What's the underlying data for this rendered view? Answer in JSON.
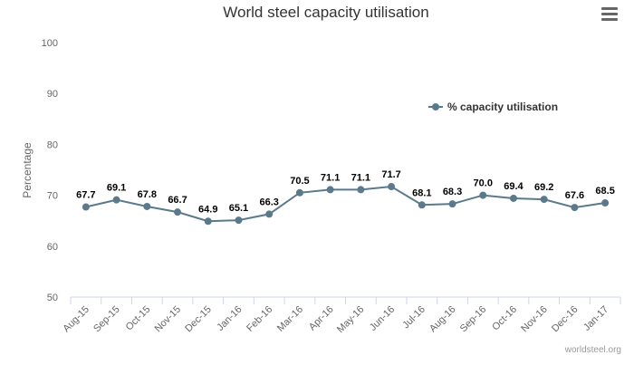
{
  "chart_data": {
    "type": "line",
    "title": "World steel capacity utilisation",
    "ylabel": "Percentage",
    "xlabel": "",
    "ylim": [
      50,
      100
    ],
    "yticks": [
      50,
      60,
      70,
      80,
      90,
      100
    ],
    "grid": false,
    "legend_position": "top-right",
    "categories": [
      "Aug-15",
      "Sep-15",
      "Oct-15",
      "Nov-15",
      "Dec-15",
      "Jan-16",
      "Feb-16",
      "Mar-16",
      "Apr-16",
      "May-16",
      "Jun-16",
      "Jul-16",
      "Aug-16",
      "Sep-16",
      "Oct-16",
      "Nov-16",
      "Dec-16",
      "Jan-17"
    ],
    "series": [
      {
        "name": "% capacity utilisation",
        "color": "#5a7a8c",
        "values": [
          67.7,
          69.1,
          67.8,
          66.7,
          64.9,
          65.1,
          66.3,
          70.5,
          71.1,
          71.1,
          71.7,
          68.1,
          68.3,
          70.0,
          69.4,
          69.2,
          67.6,
          68.5
        ],
        "labels": [
          "67.7",
          "69.1",
          "67.8",
          "66.7",
          "64.9",
          "65.1",
          "66.3",
          "70.5",
          "71.1",
          "71.1",
          "71.7",
          "68.1",
          "68.3",
          "70.0",
          "69.4",
          "69.2",
          "67.6",
          "68.5"
        ]
      }
    ],
    "credit": "worldsteel.org"
  },
  "icons": {
    "menu": "hamburger-menu-icon"
  }
}
